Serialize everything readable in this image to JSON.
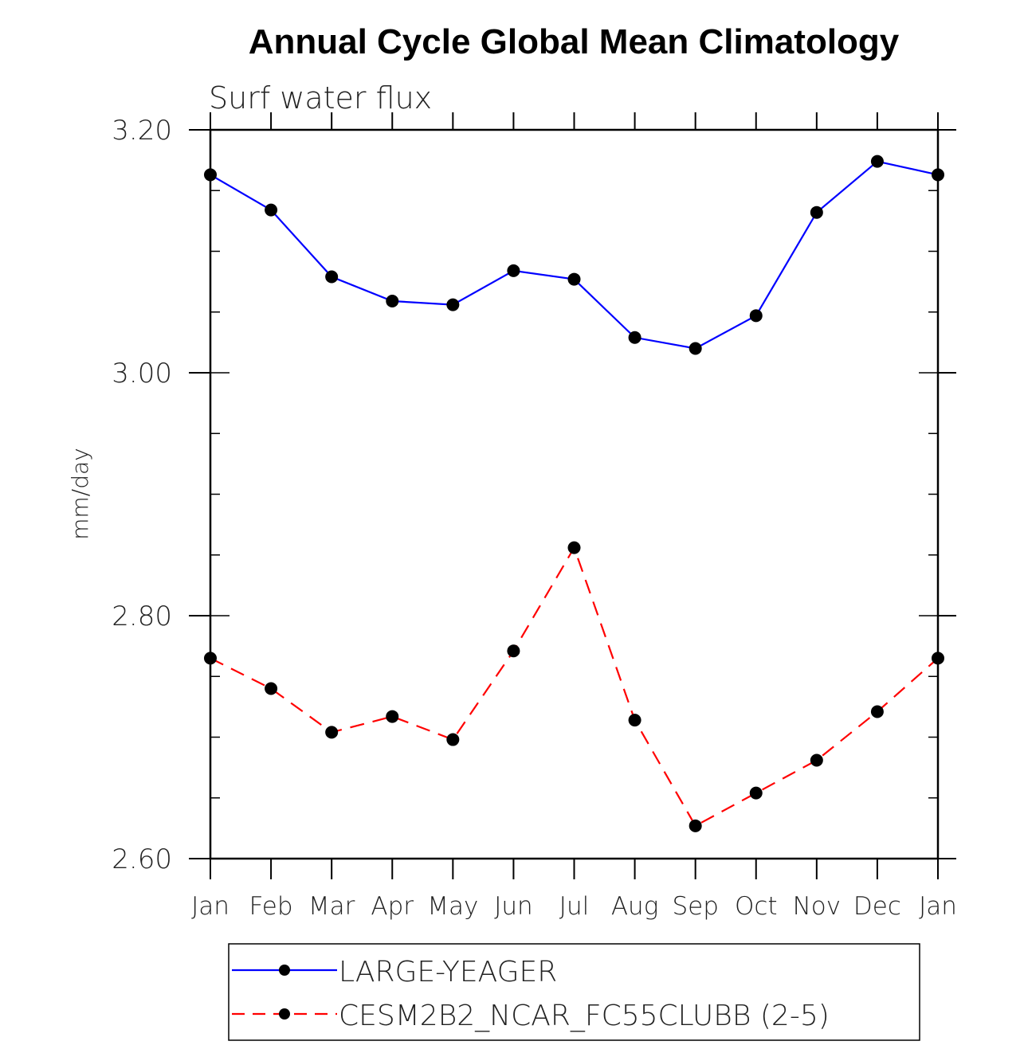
{
  "chart_data": {
    "type": "line",
    "title": "Annual Cycle Global Mean Climatology",
    "subtitle": "Surf water flux",
    "xlabel": "",
    "ylabel": "mm/day",
    "categories": [
      "Jan",
      "Feb",
      "Mar",
      "Apr",
      "May",
      "Jun",
      "Jul",
      "Aug",
      "Sep",
      "Oct",
      "Nov",
      "Dec",
      "Jan"
    ],
    "ylim": [
      2.6,
      3.2
    ],
    "yticks": [
      2.6,
      2.8,
      3.0,
      3.2
    ],
    "ytick_labels": [
      "2.60",
      "2.80",
      "3.00",
      "3.20"
    ],
    "yminor_step": 0.05,
    "grid": false,
    "legend_position": "bottom",
    "series": [
      {
        "name": "LARGE-YEAGER",
        "color": "#0000ff",
        "line_style": "solid",
        "marker": "filled-circle",
        "marker_color": "#000000",
        "values": [
          3.163,
          3.134,
          3.079,
          3.059,
          3.056,
          3.084,
          3.077,
          3.029,
          3.02,
          3.047,
          3.132,
          3.174,
          3.163
        ]
      },
      {
        "name": "CESM2B2_NCAR_FC55CLUBB (2-5)",
        "color": "#ff0000",
        "line_style": "dashed",
        "marker": "filled-circle",
        "marker_color": "#000000",
        "values": [
          2.765,
          2.74,
          2.704,
          2.717,
          2.698,
          2.771,
          2.856,
          2.714,
          2.627,
          2.654,
          2.681,
          2.721,
          2.765
        ]
      }
    ]
  }
}
